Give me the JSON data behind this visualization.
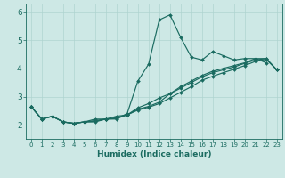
{
  "xlabel": "Humidex (Indice chaleur)",
  "bg_color": "#cde8e5",
  "line_color": "#1a6b60",
  "grid_color": "#afd4d0",
  "xlim": [
    -0.5,
    23.5
  ],
  "ylim": [
    1.5,
    6.3
  ],
  "xticks": [
    0,
    1,
    2,
    3,
    4,
    5,
    6,
    7,
    8,
    9,
    10,
    11,
    12,
    13,
    14,
    15,
    16,
    17,
    18,
    19,
    20,
    21,
    22,
    23
  ],
  "yticks": [
    2,
    3,
    4,
    5,
    6
  ],
  "series": [
    [
      2.65,
      2.2,
      2.3,
      2.1,
      2.05,
      2.1,
      2.1,
      2.2,
      2.2,
      2.4,
      3.55,
      4.15,
      5.72,
      5.9,
      5.1,
      4.4,
      4.3,
      4.6,
      4.45,
      4.3,
      4.35,
      4.35,
      4.2
    ],
    [
      2.65,
      2.2,
      2.3,
      2.1,
      2.05,
      2.1,
      2.2,
      2.2,
      2.3,
      2.35,
      2.55,
      2.65,
      2.8,
      3.1,
      3.35,
      3.55,
      3.75,
      3.9,
      4.0,
      4.1,
      4.2,
      4.35,
      4.35,
      3.95
    ],
    [
      2.65,
      2.2,
      2.3,
      2.1,
      2.05,
      2.1,
      2.15,
      2.2,
      2.25,
      2.35,
      2.6,
      2.75,
      2.95,
      3.1,
      3.3,
      3.5,
      3.7,
      3.85,
      3.95,
      4.05,
      4.18,
      4.3,
      4.35,
      3.95
    ],
    [
      2.65,
      2.2,
      2.3,
      2.1,
      2.05,
      2.1,
      2.12,
      2.2,
      2.22,
      2.35,
      2.52,
      2.62,
      2.75,
      2.95,
      3.15,
      3.35,
      3.58,
      3.72,
      3.85,
      3.97,
      4.1,
      4.25,
      4.32,
      3.95
    ]
  ],
  "series_x": [
    [
      0,
      1,
      2,
      3,
      4,
      5,
      6,
      7,
      8,
      9,
      10,
      11,
      12,
      13,
      14,
      15,
      16,
      17,
      18,
      19,
      20,
      21,
      22
    ],
    [
      0,
      1,
      2,
      3,
      4,
      5,
      6,
      7,
      8,
      9,
      10,
      11,
      12,
      13,
      14,
      15,
      16,
      17,
      18,
      19,
      20,
      21,
      22,
      23
    ],
    [
      0,
      1,
      2,
      3,
      4,
      5,
      6,
      7,
      8,
      9,
      10,
      11,
      12,
      13,
      14,
      15,
      16,
      17,
      18,
      19,
      20,
      21,
      22,
      23
    ],
    [
      0,
      1,
      2,
      3,
      4,
      5,
      6,
      7,
      8,
      9,
      10,
      11,
      12,
      13,
      14,
      15,
      16,
      17,
      18,
      19,
      20,
      21,
      22,
      23
    ]
  ]
}
